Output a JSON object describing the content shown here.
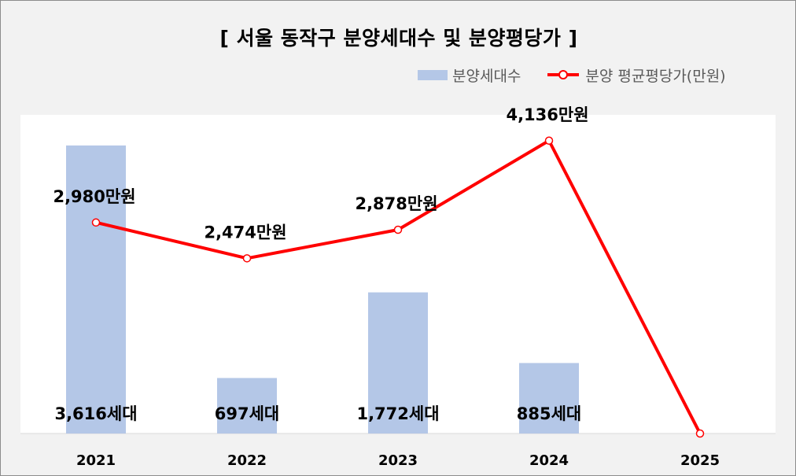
{
  "chart_data": {
    "type": "bar+line",
    "title": "[ 서울 동작구 분양세대수 및 분양평당가 ]",
    "categories": [
      "2021",
      "2022",
      "2023",
      "2024",
      "2025"
    ],
    "series": [
      {
        "name": "분양세대수",
        "type": "bar",
        "color": "#b4c7e7",
        "values": [
          3616,
          697,
          1772,
          885,
          null
        ],
        "labels": [
          "3,616세대",
          "697세대",
          "1,772세대",
          "885세대",
          ""
        ]
      },
      {
        "name": "분양 평균평당가(만원)",
        "type": "line",
        "color": "#ff0000",
        "values": [
          2980,
          2474,
          2878,
          4136,
          0
        ],
        "labels": [
          "2,980만원",
          "2,474만원",
          "2,878만원",
          "4,136만원",
          ""
        ]
      }
    ],
    "bar_axis": {
      "ylim": [
        0,
        4000
      ]
    },
    "line_axis": {
      "ylim": [
        0,
        4500
      ]
    },
    "legend_position": "top-right",
    "grid": false
  }
}
